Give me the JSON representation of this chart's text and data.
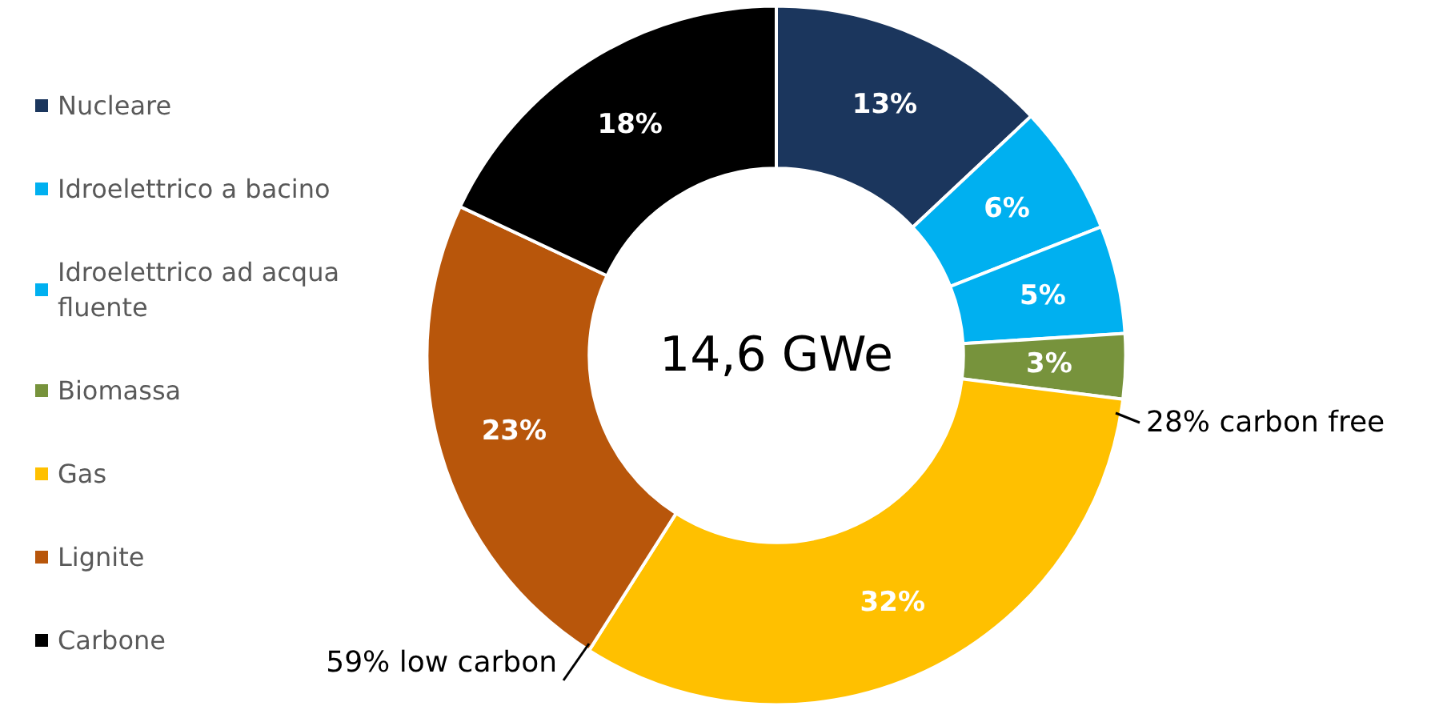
{
  "chart_data": {
    "type": "donut",
    "categories": [
      "Nucleare",
      "Idroelettrico a bacino",
      "Idroelettrico ad acqua fluente",
      "Biomassa",
      "Gas",
      "Lignite",
      "Carbone"
    ],
    "values": [
      13,
      6,
      5,
      3,
      32,
      23,
      18
    ],
    "colors": [
      "#1b365d",
      "#00b0f0",
      "#00b0f0",
      "#77933c",
      "#ffc000",
      "#b8560b",
      "#000000"
    ],
    "value_labels": [
      "13%",
      "6%",
      "5%",
      "3%",
      "32%",
      "23%",
      "18%"
    ],
    "legend": "left",
    "annotations": [
      "14,6 GWe",
      "28% carbon free",
      "59% low carbon"
    ]
  }
}
